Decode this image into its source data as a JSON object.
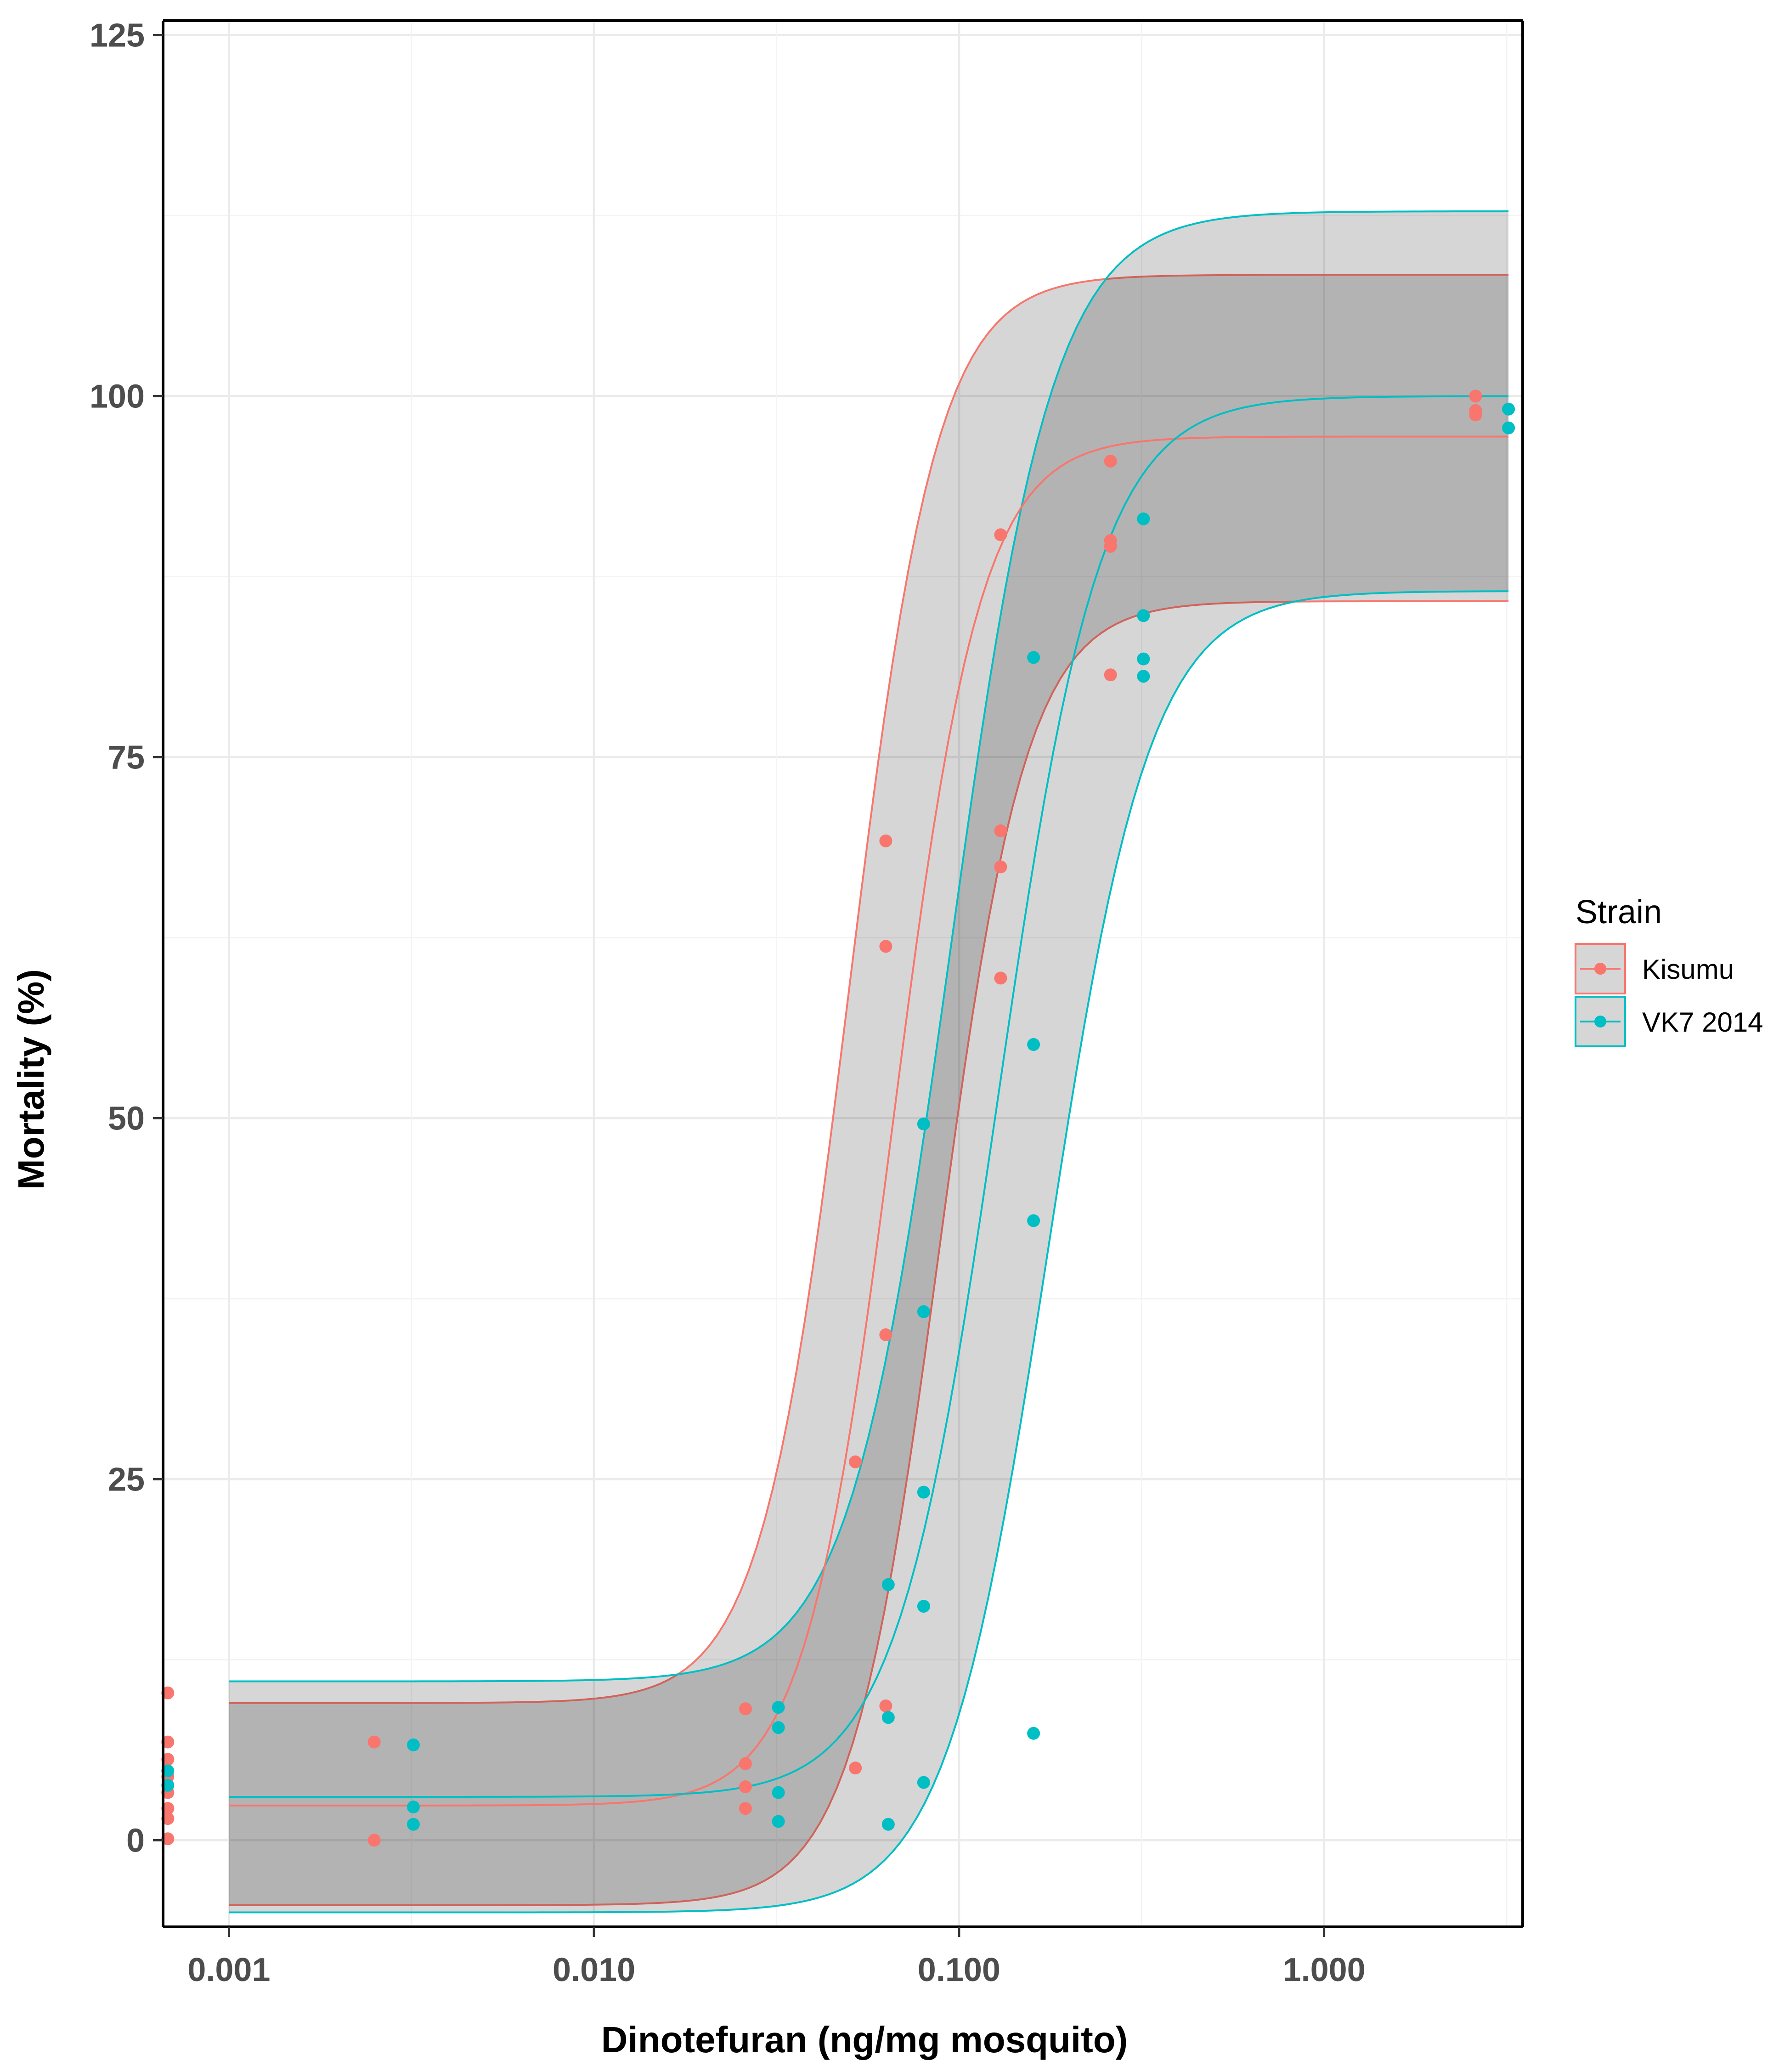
{
  "chart_data": {
    "type": "scatter",
    "title": "",
    "xlabel": "Dinotefuran (ng/mg mosquito)",
    "ylabel": "Mortality (%)",
    "x_scale": "log10",
    "xlim": [
      0.00066,
      3.5
    ],
    "ylim": [
      -6,
      126
    ],
    "x_ticks": [
      0.001,
      0.01,
      0.1,
      1
    ],
    "x_tick_labels": [
      "0.001",
      "0.010",
      "0.100",
      "1.000"
    ],
    "y_ticks": [
      0,
      25,
      50,
      75,
      100,
      125
    ],
    "y_tick_labels": [
      "0",
      "25",
      "50",
      "75",
      "100",
      "125"
    ],
    "grid": true,
    "legend": {
      "title": "Strain",
      "position": "right"
    },
    "series": [
      {
        "name": "Kisumu",
        "color": "#F8766D",
        "points": [
          {
            "x": 0.00068,
            "y": 10.2
          },
          {
            "x": 0.00068,
            "y": 6.8
          },
          {
            "x": 0.00068,
            "y": 5.6
          },
          {
            "x": 0.00068,
            "y": 4.4
          },
          {
            "x": 0.00068,
            "y": 3.3
          },
          {
            "x": 0.00068,
            "y": 2.2
          },
          {
            "x": 0.00068,
            "y": 1.5
          },
          {
            "x": 0.00068,
            "y": 0.1
          },
          {
            "x": 0.0025,
            "y": 6.8
          },
          {
            "x": 0.0025,
            "y": 0.0
          },
          {
            "x": 0.026,
            "y": 9.1
          },
          {
            "x": 0.026,
            "y": 5.3
          },
          {
            "x": 0.026,
            "y": 3.7
          },
          {
            "x": 0.026,
            "y": 2.2
          },
          {
            "x": 0.052,
            "y": 26.2
          },
          {
            "x": 0.052,
            "y": 5.0
          },
          {
            "x": 0.063,
            "y": 69.2
          },
          {
            "x": 0.063,
            "y": 61.9
          },
          {
            "x": 0.063,
            "y": 35.0
          },
          {
            "x": 0.063,
            "y": 9.3
          },
          {
            "x": 0.13,
            "y": 90.4
          },
          {
            "x": 0.13,
            "y": 69.9
          },
          {
            "x": 0.13,
            "y": 67.4
          },
          {
            "x": 0.13,
            "y": 59.7
          },
          {
            "x": 0.26,
            "y": 95.5
          },
          {
            "x": 0.26,
            "y": 90.0
          },
          {
            "x": 0.26,
            "y": 89.6
          },
          {
            "x": 0.26,
            "y": 80.7
          },
          {
            "x": 2.6,
            "y": 100.0
          },
          {
            "x": 2.6,
            "y": 99.0
          },
          {
            "x": 2.6,
            "y": 98.7
          }
        ],
        "fit": {
          "min": 2.4,
          "max": 97.2,
          "ec50": 0.066,
          "slope": 3.6
        },
        "band": {
          "lower_min": -4.5,
          "lower_max": 85.8,
          "lower_ec50": 0.088,
          "lower_slope": 3.6,
          "upper_min": 9.5,
          "upper_max": 108.4,
          "upper_ec50": 0.05,
          "upper_slope": 3.6
        }
      },
      {
        "name": "VK7 2014",
        "color": "#00BFC4",
        "points": [
          {
            "x": 0.00068,
            "y": 4.8
          },
          {
            "x": 0.00068,
            "y": 3.8
          },
          {
            "x": 0.0032,
            "y": 6.6
          },
          {
            "x": 0.0032,
            "y": 2.3
          },
          {
            "x": 0.0032,
            "y": 1.1
          },
          {
            "x": 0.032,
            "y": 9.2
          },
          {
            "x": 0.032,
            "y": 7.8
          },
          {
            "x": 0.032,
            "y": 3.3
          },
          {
            "x": 0.032,
            "y": 1.3
          },
          {
            "x": 0.064,
            "y": 17.7
          },
          {
            "x": 0.064,
            "y": 8.5
          },
          {
            "x": 0.064,
            "y": 1.1
          },
          {
            "x": 0.08,
            "y": 49.6
          },
          {
            "x": 0.08,
            "y": 36.6
          },
          {
            "x": 0.08,
            "y": 24.1
          },
          {
            "x": 0.08,
            "y": 16.2
          },
          {
            "x": 0.08,
            "y": 4.0
          },
          {
            "x": 0.16,
            "y": 81.9
          },
          {
            "x": 0.16,
            "y": 55.1
          },
          {
            "x": 0.16,
            "y": 42.9
          },
          {
            "x": 0.16,
            "y": 7.4
          },
          {
            "x": 0.32,
            "y": 91.5
          },
          {
            "x": 0.32,
            "y": 84.8
          },
          {
            "x": 0.32,
            "y": 81.8
          },
          {
            "x": 0.32,
            "y": 80.6
          },
          {
            "x": 3.2,
            "y": 99.1
          },
          {
            "x": 3.2,
            "y": 97.8
          }
        ],
        "fit": {
          "min": 3.0,
          "max": 100.0,
          "ec50": 0.128,
          "slope": 3.1
        },
        "band": {
          "lower_min": -5.0,
          "lower_max": 86.5,
          "lower_ec50": 0.175,
          "lower_slope": 3.1,
          "upper_min": 11.0,
          "upper_max": 112.8,
          "upper_ec50": 0.095,
          "upper_slope": 3.1
        }
      }
    ]
  }
}
